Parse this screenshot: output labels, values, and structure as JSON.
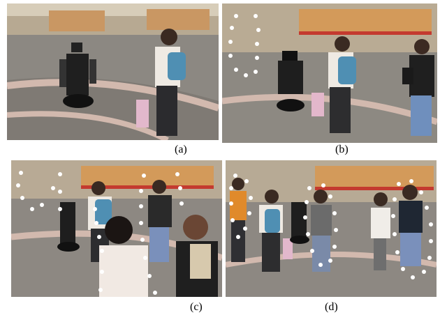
{
  "figure": {
    "captions": [
      "(a)",
      "(b)",
      "(c)",
      "(d)"
    ]
  },
  "panels": [
    {
      "label_ref": "a",
      "content": "robot-and-woman-backpack"
    },
    {
      "label_ref": "b",
      "content": "robot-woman-walking-pedestrians"
    },
    {
      "label_ref": "c",
      "content": "crowd-around-robot"
    },
    {
      "label_ref": "d",
      "content": "pedestrians-tracked"
    }
  ],
  "colors": {
    "floor": "#8c8882",
    "floor_stripe": "#c9b8ae",
    "wall_panel": "#d39a5a",
    "track_dot": "#ffffff",
    "backpack": "#4f8fb3"
  }
}
